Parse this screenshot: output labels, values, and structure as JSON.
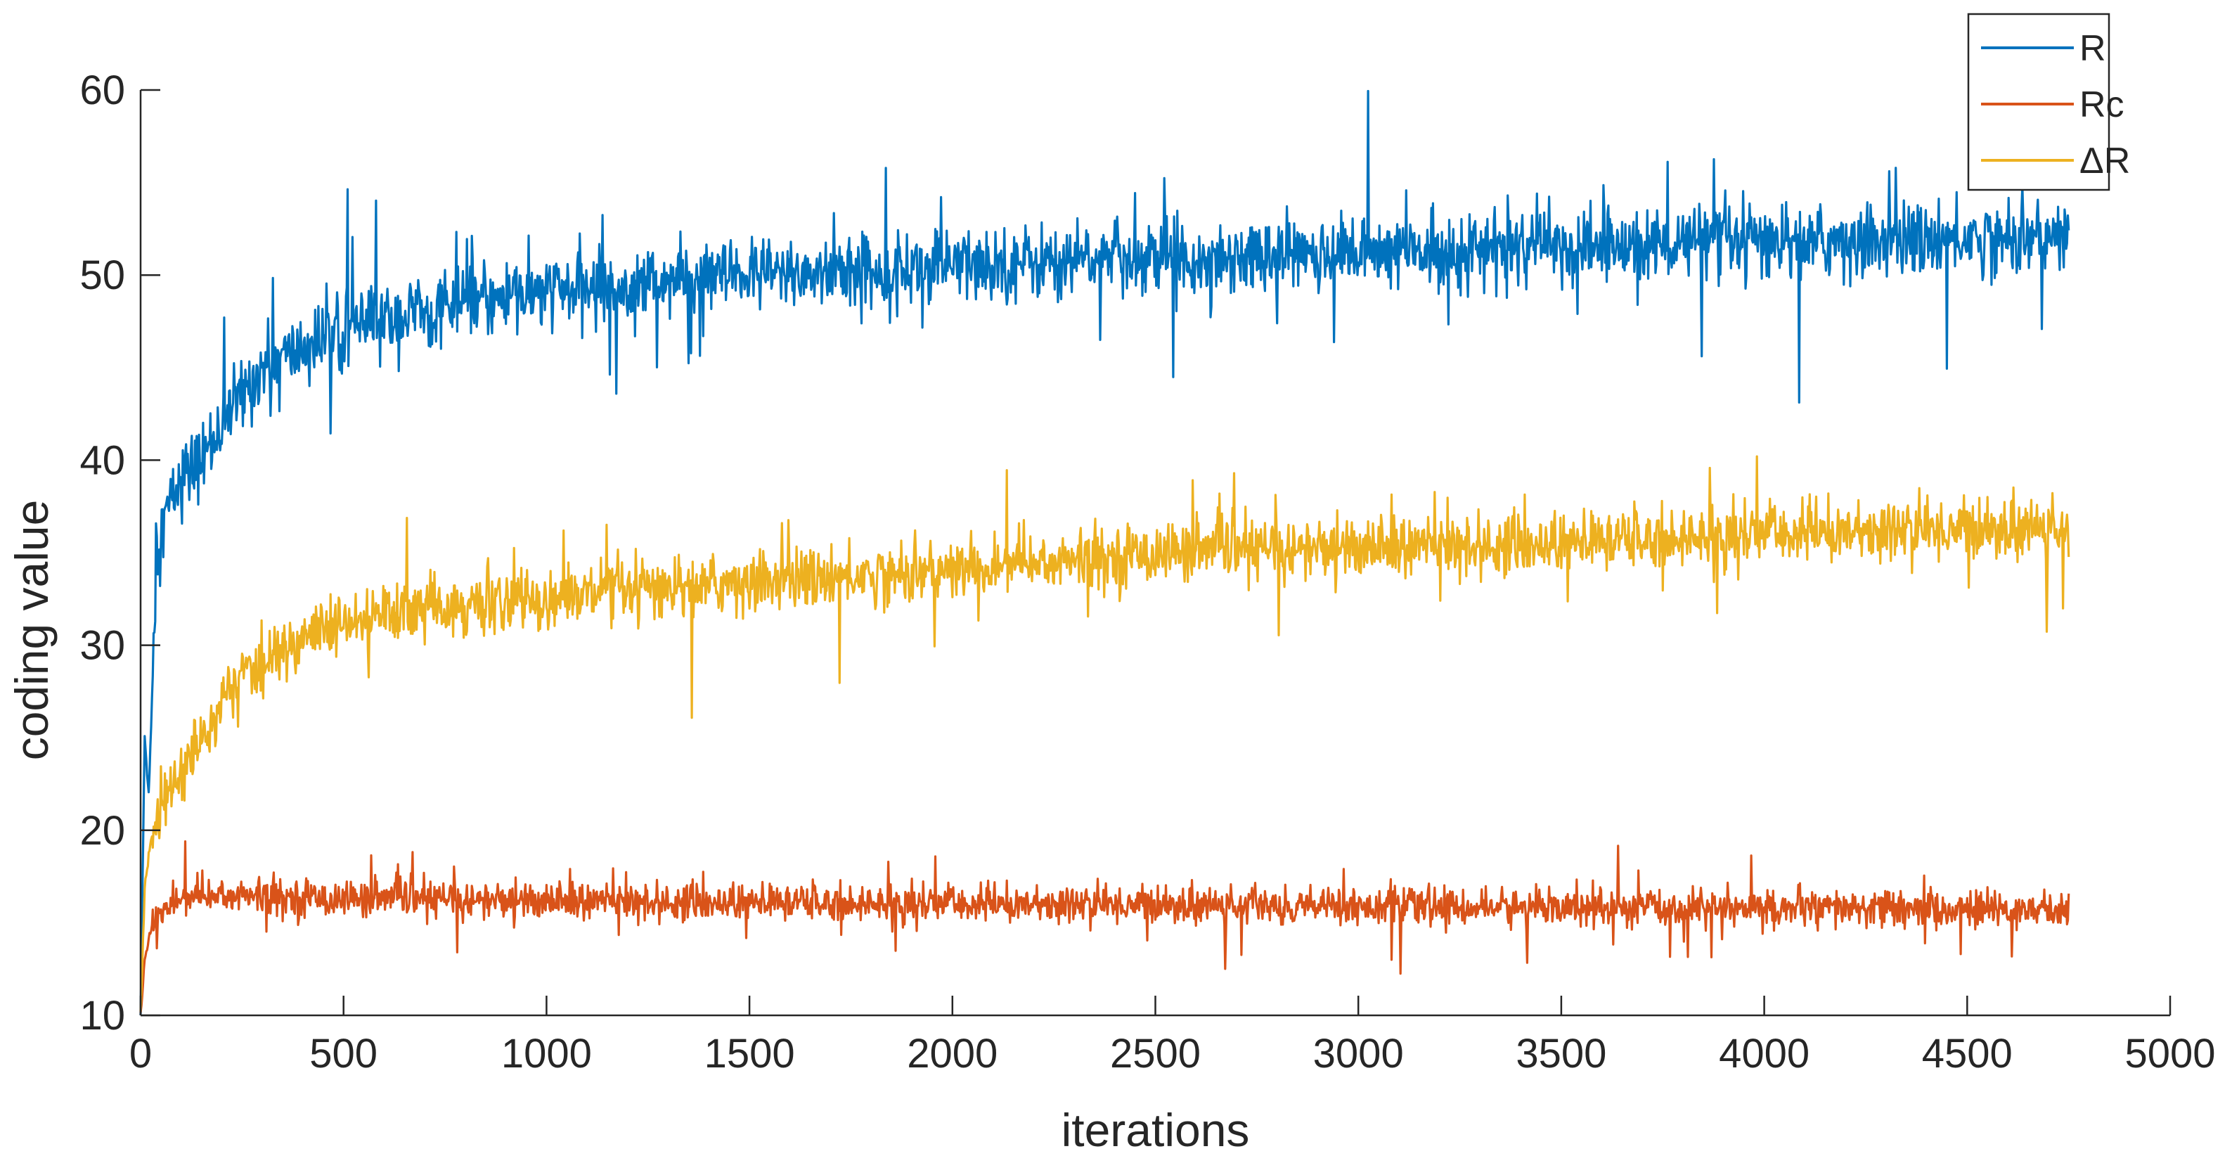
{
  "chart_data": {
    "type": "line",
    "title": "",
    "xlabel": "iterations",
    "ylabel": "coding value",
    "xlim": [
      0,
      5000
    ],
    "ylim": [
      10,
      60
    ],
    "x_ticks": [
      0,
      500,
      1000,
      1500,
      2000,
      2500,
      3000,
      3500,
      4000,
      4500,
      5000
    ],
    "y_ticks": [
      10,
      20,
      30,
      40,
      50,
      60
    ],
    "grid": false,
    "legend_position": "top-right",
    "x_end": 4750,
    "series": [
      {
        "name": "R",
        "color": "#0072BD",
        "points": [
          [
            0,
            10
          ],
          [
            10,
            25
          ],
          [
            20,
            22
          ],
          [
            40,
            35
          ],
          [
            60,
            37
          ],
          [
            80,
            38
          ],
          [
            100,
            39
          ],
          [
            150,
            40
          ],
          [
            200,
            42
          ],
          [
            250,
            43.5
          ],
          [
            300,
            45
          ],
          [
            400,
            46
          ],
          [
            500,
            47
          ],
          [
            600,
            47.5
          ],
          [
            700,
            48
          ],
          [
            800,
            48.5
          ],
          [
            1000,
            49
          ],
          [
            1200,
            49.5
          ],
          [
            1500,
            50
          ],
          [
            2000,
            50.5
          ],
          [
            2500,
            51
          ],
          [
            3000,
            51.2
          ],
          [
            3500,
            51.5
          ],
          [
            4000,
            51.8
          ],
          [
            4500,
            52
          ],
          [
            4750,
            52
          ]
        ],
        "noise": 2.2
      },
      {
        "name": "Rc",
        "color": "#D95319",
        "points": [
          [
            0,
            10
          ],
          [
            10,
            13
          ],
          [
            30,
            15
          ],
          [
            60,
            16
          ],
          [
            100,
            16.2
          ],
          [
            200,
            16.5
          ],
          [
            500,
            16.3
          ],
          [
            1000,
            16.2
          ],
          [
            1500,
            16.1
          ],
          [
            2000,
            16
          ],
          [
            2500,
            16
          ],
          [
            3000,
            15.9
          ],
          [
            3500,
            15.8
          ],
          [
            4000,
            15.8
          ],
          [
            4500,
            15.7
          ],
          [
            4750,
            15.7
          ]
        ],
        "noise": 1.1
      },
      {
        "name": "ΔR",
        "color": "#EDB120",
        "points": [
          [
            0,
            10
          ],
          [
            10,
            17
          ],
          [
            30,
            20
          ],
          [
            60,
            22
          ],
          [
            100,
            23
          ],
          [
            150,
            25
          ],
          [
            200,
            27
          ],
          [
            300,
            29
          ],
          [
            400,
            30.5
          ],
          [
            500,
            31
          ],
          [
            700,
            32
          ],
          [
            1000,
            32.5
          ],
          [
            1500,
            33.5
          ],
          [
            2000,
            34
          ],
          [
            2500,
            35
          ],
          [
            3000,
            35.3
          ],
          [
            3500,
            35.5
          ],
          [
            4000,
            36
          ],
          [
            4500,
            36.3
          ],
          [
            4750,
            36.4
          ]
        ],
        "noise": 1.8
      }
    ]
  }
}
